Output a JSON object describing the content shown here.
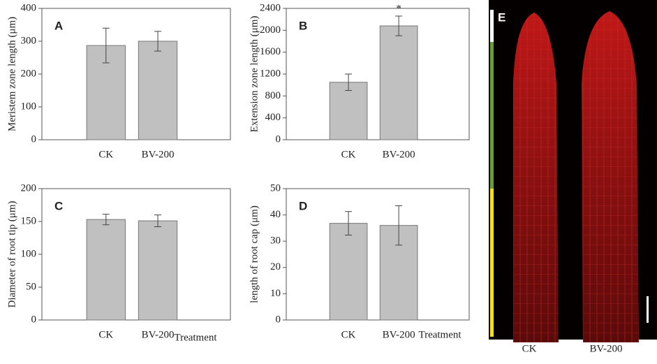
{
  "chart_data": [
    {
      "type": "bar",
      "panel_label": "A",
      "ylabel": "Meristem zone length (μm)",
      "categories": [
        "CK",
        "BV-200"
      ],
      "values": [
        287,
        300
      ],
      "errors": [
        53,
        30
      ],
      "ylim": [
        0,
        400
      ],
      "yticks": [
        0,
        100,
        200,
        300,
        400
      ],
      "color": "#c0c0c0"
    },
    {
      "type": "bar",
      "panel_label": "B",
      "ylabel": "Extension zone length (μm)",
      "annotation": "*",
      "categories": [
        "CK",
        "BV-200"
      ],
      "values": [
        1050,
        2080
      ],
      "errors": [
        150,
        180
      ],
      "ylim": [
        0,
        2400
      ],
      "yticks": [
        0,
        400,
        800,
        1200,
        1600,
        2000,
        2400
      ],
      "color": "#c0c0c0"
    },
    {
      "type": "bar",
      "panel_label": "C",
      "ylabel": "Diameter of root tip (μm)",
      "xlabel": "Treatment",
      "categories": [
        "CK",
        "BV-200"
      ],
      "values": [
        153,
        151
      ],
      "errors": [
        8,
        9
      ],
      "ylim": [
        0,
        200
      ],
      "yticks": [
        0,
        50,
        100,
        150,
        200
      ],
      "color": "#c0c0c0"
    },
    {
      "type": "bar",
      "panel_label": "D",
      "ylabel": "length of root cap (μm)",
      "xlabel": "Treatment",
      "categories": [
        "CK",
        "BV-200"
      ],
      "values": [
        36.8,
        36
      ],
      "errors": [
        4.5,
        7.5
      ],
      "ylim": [
        0,
        50
      ],
      "yticks": [
        0,
        10,
        20,
        30,
        40,
        50
      ],
      "color": "#c0c0c0"
    }
  ],
  "image_panel": {
    "panel_label": "E",
    "labels": [
      "CK",
      "BV-200"
    ]
  }
}
